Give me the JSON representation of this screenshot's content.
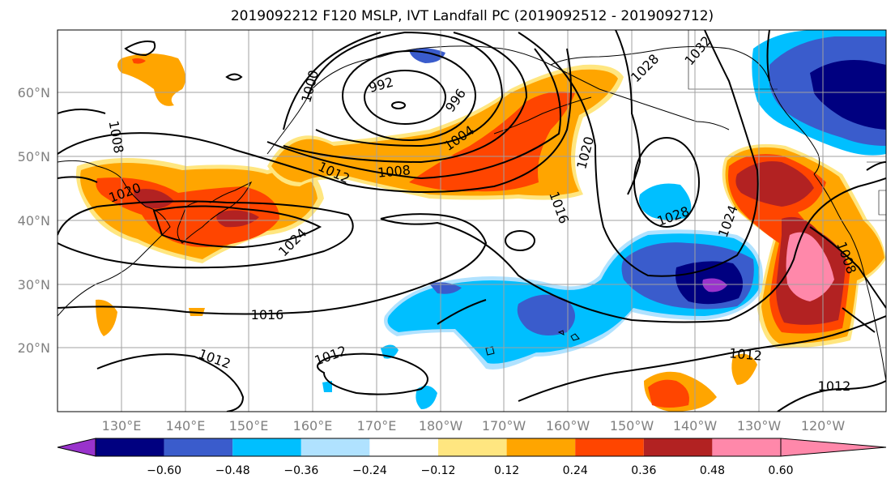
{
  "title": "2019092212 F120 MSLP, IVT Landfall PC (2019092512 - 2019092712)",
  "map": {
    "lat_ticks": [
      "60°N",
      "50°N",
      "40°N",
      "30°N",
      "20°N"
    ],
    "lon_ticks": [
      "130°E",
      "140°E",
      "150°E",
      "160°E",
      "170°E",
      "180°W",
      "170°W",
      "160°W",
      "150°W",
      "140°W",
      "130°W",
      "120°W"
    ],
    "contour_labels": [
      "1008",
      "1020",
      "1024",
      "1012",
      "1008",
      "992",
      "996",
      "1000",
      "1004",
      "1016",
      "1020",
      "1028",
      "1028",
      "1032",
      "1024",
      "1008",
      "1016",
      "1012",
      "1012",
      "1012",
      "1012"
    ],
    "fill_colors": {
      "neg_lt_060": "#9933cc",
      "neg_048_060": "#000080",
      "neg_036_048": "#3a5ccc",
      "neg_024_036": "#00bfff",
      "neg_012_024": "#b0e2ff",
      "neutral": "#ffffff",
      "pos_012_024": "#ffe680",
      "pos_024_036": "#ffa500",
      "pos_036_048": "#ff4500",
      "pos_048_060": "#b22222",
      "pos_gt_060": "#ff88aa"
    }
  },
  "colorbar": {
    "colors": [
      "#9933cc",
      "#000080",
      "#3a5ccc",
      "#00bfff",
      "#b0e2ff",
      "#ffffff",
      "#ffe680",
      "#ffa500",
      "#ff4500",
      "#b22222",
      "#ff88aa"
    ],
    "labels": [
      "−0.60",
      "−0.48",
      "−0.36",
      "−0.24",
      "−0.12",
      "0.12",
      "0.24",
      "0.36",
      "0.48",
      "0.60"
    ]
  }
}
